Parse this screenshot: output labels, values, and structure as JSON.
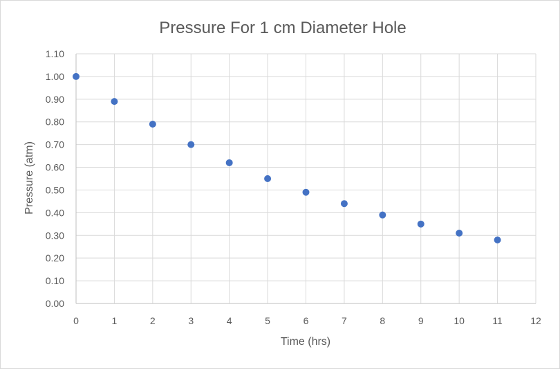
{
  "chart_data": {
    "type": "scatter",
    "title": "Pressure For 1 cm Diameter Hole",
    "xlabel": "Time (hrs)",
    "ylabel": "Pressure (atm)",
    "xlim": [
      0,
      12
    ],
    "ylim": [
      0,
      1.1
    ],
    "x_ticks": [
      "0",
      "1",
      "2",
      "3",
      "4",
      "5",
      "6",
      "7",
      "8",
      "9",
      "10",
      "11",
      "12"
    ],
    "y_ticks": [
      "0.00",
      "0.10",
      "0.20",
      "0.30",
      "0.40",
      "0.50",
      "0.60",
      "0.70",
      "0.80",
      "0.90",
      "1.00",
      "1.10"
    ],
    "grid": true,
    "legend": "none",
    "marker_color": "#4472c4",
    "x": [
      0,
      1,
      2,
      3,
      4,
      5,
      6,
      7,
      8,
      9,
      10,
      11
    ],
    "y": [
      1.0,
      0.89,
      0.79,
      0.7,
      0.62,
      0.55,
      0.49,
      0.44,
      0.39,
      0.35,
      0.31,
      0.28
    ]
  }
}
